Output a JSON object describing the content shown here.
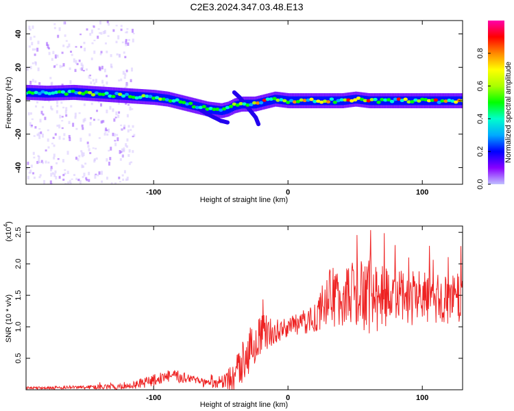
{
  "page": {
    "title": "C2E3.2024.347.03.48.E13"
  },
  "chart_data": [
    {
      "type": "heatmap",
      "title": "C2E3.2024.347.03.48.E13",
      "xlabel": "Height of straight line (km)",
      "ylabel": "Frequency (Hz)",
      "xlim": [
        -195,
        130
      ],
      "ylim": [
        -50,
        48
      ],
      "xticks": [
        -100,
        0,
        100
      ],
      "yticks": [
        -40,
        -20,
        0,
        20,
        40
      ],
      "colorbar": {
        "label": "Normalized spectral amplitude",
        "range": [
          0,
          1
        ],
        "ticks": [
          0.0,
          0.2,
          0.4,
          0.6,
          0.8
        ],
        "tick_labels": [
          "0.0",
          "0.2",
          "0.4",
          "0.6",
          "0.8"
        ],
        "colormap": [
          "#c0c0ff",
          "#8800ff",
          "#0000ff",
          "#00aaff",
          "#00ffcc",
          "#00ff00",
          "#aaff00",
          "#ffff00",
          "#ff8800",
          "#ff0000",
          "#ff00aa"
        ]
      },
      "ridge": {
        "x": [
          -195,
          -180,
          -160,
          -140,
          -120,
          -100,
          -90,
          -80,
          -70,
          -60,
          -50,
          -45,
          -40,
          -35,
          -30,
          -25,
          -20,
          -10,
          0,
          20,
          40,
          50,
          60,
          80,
          100,
          130
        ],
        "y": [
          5,
          4.5,
          5,
          4,
          3,
          2,
          1,
          -1,
          -3,
          -5,
          -6,
          -5,
          -3,
          -2,
          -2,
          -2,
          -1,
          1,
          0,
          0,
          0,
          1,
          0,
          0,
          0,
          0
        ]
      },
      "branch": {
        "x": [
          -40,
          -36,
          -32,
          -28,
          -24,
          -22
        ],
        "y": [
          5,
          2,
          -2,
          -6,
          -10,
          -14
        ]
      },
      "lower_tail": {
        "x": [
          -70,
          -60,
          -50,
          -45
        ],
        "y": [
          -3,
          -8,
          -12,
          -13
        ]
      }
    },
    {
      "type": "line",
      "xlabel": "Height of straight line (km)",
      "ylabel": "SNR (10 * v/v)",
      "multiplier_label": "(x10",
      "multiplier_exp": "4",
      "multiplier_close": ")",
      "xlim": [
        -195,
        130
      ],
      "ylim": [
        0,
        2.6
      ],
      "xticks": [
        -100,
        0,
        100
      ],
      "yticks": [
        0.5,
        1.0,
        1.5,
        2.0,
        2.5
      ],
      "ytick_labels": [
        "0.5",
        "1.0",
        "1.5",
        "2.0",
        "2.5"
      ],
      "color": "#ee2222",
      "baseline": {
        "x": [
          -195,
          -150,
          -120,
          -100,
          -90,
          -70,
          -60,
          -50,
          -40,
          -35,
          -30,
          -25,
          -20,
          -15,
          -10,
          -5,
          0,
          10,
          20,
          25,
          30,
          40,
          50,
          60,
          70,
          80,
          90,
          100,
          110,
          120,
          130
        ],
        "y": [
          0.03,
          0.04,
          0.05,
          0.15,
          0.22,
          0.18,
          0.08,
          0.1,
          0.2,
          0.4,
          0.6,
          0.75,
          0.85,
          0.9,
          0.92,
          0.95,
          1.0,
          1.05,
          1.15,
          1.3,
          1.45,
          1.5,
          1.5,
          1.45,
          1.5,
          1.45,
          1.45,
          1.45,
          1.42,
          1.45,
          1.45
        ]
      },
      "noise_amplitude": {
        "x": [
          -195,
          -150,
          -120,
          -100,
          -80,
          -70,
          -50,
          -40,
          -30,
          -20,
          -10,
          0,
          20,
          30,
          40,
          60,
          80,
          130
        ],
        "y": [
          0.02,
          0.03,
          0.05,
          0.1,
          0.1,
          0.07,
          0.08,
          0.25,
          0.4,
          0.35,
          0.2,
          0.15,
          0.25,
          0.45,
          0.5,
          0.6,
          0.45,
          0.4
        ]
      }
    }
  ]
}
